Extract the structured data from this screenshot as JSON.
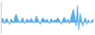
{
  "chart_data": {
    "type": "area",
    "values": [
      0.3,
      0.8,
      -0.2,
      0.5,
      0.7,
      0.2,
      -0.3,
      0.6,
      0.4,
      -0.1,
      0.9,
      1.4,
      0.6,
      0.3,
      -0.1,
      0.5,
      0.8,
      -0.2,
      0.3,
      0.6,
      0.4,
      0.2,
      0.7,
      0.5,
      -0.1,
      0.3,
      1.1,
      0.6,
      0.2,
      -0.3,
      0.4,
      0.8,
      0.5,
      0.2,
      0.6,
      0.3,
      -0.2,
      0.7,
      0.4,
      0.1,
      0.5,
      0.3,
      0.8,
      0.6,
      0.2,
      -0.3,
      0.5,
      0.9,
      0.4,
      0.2,
      0.6,
      -0.2,
      0.8,
      1.6,
      2.2,
      1.0,
      -0.5,
      2.8,
      -1.2,
      1.5,
      0.4,
      -0.6,
      0.3,
      0.8,
      -0.3,
      0.5,
      0.2,
      -0.1,
      0.4,
      0.6
    ],
    "baseline": 0.0,
    "color": "#5baee8",
    "ylim": [
      -1.8,
      3.5
    ],
    "grid": false,
    "tick_labels": false
  }
}
